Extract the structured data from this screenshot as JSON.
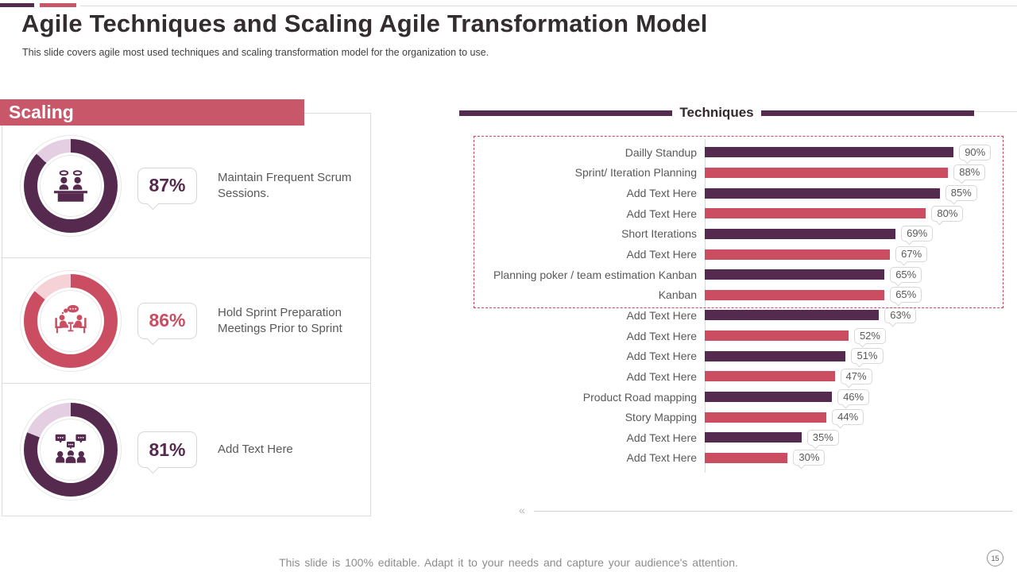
{
  "slide": {
    "title": "Agile Techniques and Scaling Agile Transformation Model",
    "subtitle": "This slide covers agile most used techniques and scaling transformation model for the organization to use.",
    "footer": "This slide is 100% editable. Adapt it to your needs and capture your audience's attention.",
    "page_number": "15",
    "scroll_glyph": "«"
  },
  "colors": {
    "purple": "#542b4e",
    "red": "#cb4d61",
    "banner_red": "#c8576a",
    "purple_light": "#e3cfe1",
    "red_light": "#f5d2d8",
    "text_gray": "#595959",
    "border_gray": "#d9d9d9"
  },
  "scaling": {
    "heading": "Scaling",
    "items": [
      {
        "value": 87,
        "value_label": "87%",
        "label": "Maintain Frequent Scrum Sessions.",
        "icon": "presenters-desk-icon",
        "color_main": "#552a4e",
        "color_light": "#e3cfe1"
      },
      {
        "value": 86,
        "value_label": "86%",
        "label": "Hold Sprint Preparation Meetings Prior to Sprint",
        "icon": "meeting-table-icon",
        "color_main": "#cb4d61",
        "color_light": "#f5d2d8"
      },
      {
        "value": 81,
        "value_label": "81%",
        "label": "Add Text Here",
        "icon": "team-discussion-icon",
        "color_main": "#552a4e",
        "color_light": "#e3cfe1"
      }
    ]
  },
  "techniques": {
    "heading": "Techniques"
  },
  "chart_data": [
    {
      "type": "bar",
      "orientation": "horizontal",
      "title": "Techniques",
      "categories": [
        "Dailly Standup",
        "Sprint/ Iteration Planning",
        "Add Text Here",
        "Add Text Here",
        "Short Iterations",
        "Add Text Here",
        "Planning poker / team estimation Kanban",
        "Kanban",
        "Add Text Here",
        "Add Text Here",
        "Add Text Here",
        "Add Text Here",
        "Product Road mapping",
        "Story Mapping",
        "Add Text Here",
        "Add Text Here"
      ],
      "values": [
        90,
        88,
        85,
        80,
        69,
        67,
        65,
        65,
        63,
        52,
        51,
        47,
        46,
        44,
        35,
        30
      ],
      "value_labels": [
        "90%",
        "88%",
        "85%",
        "80%",
        "69%",
        "67%",
        "65%",
        "65%",
        "63%",
        "52%",
        "51%",
        "47%",
        "46%",
        "44%",
        "35%",
        "30%"
      ],
      "series_colors": [
        "#542b4e",
        "#cb4d61"
      ],
      "color_pattern": "alternating",
      "xlim": [
        0,
        100
      ],
      "grid": false,
      "legend": false,
      "annotation": "dashed highlight box around top 8 bars"
    },
    {
      "type": "pie",
      "subtype": "donut-kpi",
      "title": "Scaling",
      "items": [
        {
          "label": "Maintain Frequent Scrum Sessions.",
          "value": 87
        },
        {
          "label": "Hold Sprint Preparation Meetings Prior to Sprint",
          "value": 86
        },
        {
          "label": "Add Text Here",
          "value": 81
        }
      ]
    }
  ]
}
